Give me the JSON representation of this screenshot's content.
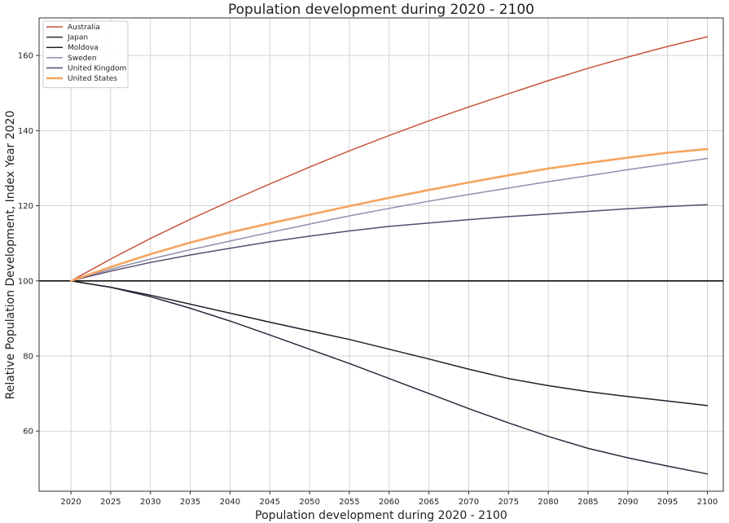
{
  "chart_data": {
    "type": "line",
    "title": "Population development during 2020 - 2100",
    "xlabel": "Population development during 2020 - 2100",
    "ylabel": "Relative Population Development, Index Year 2020",
    "x": [
      2020,
      2025,
      2030,
      2035,
      2040,
      2045,
      2050,
      2055,
      2060,
      2065,
      2070,
      2075,
      2080,
      2085,
      2090,
      2095,
      2100
    ],
    "xlim": [
      2016,
      2102
    ],
    "ylim": [
      44,
      170
    ],
    "xticks": [
      "2020",
      "2025",
      "2030",
      "2035",
      "2040",
      "2045",
      "2050",
      "2055",
      "2060",
      "2065",
      "2070",
      "2075",
      "2080",
      "2085",
      "2090",
      "2095",
      "2100"
    ],
    "yticks": [
      "60",
      "80",
      "100",
      "120",
      "140",
      "160"
    ],
    "grid": true,
    "legend_position": "top-left",
    "reference_line": 100,
    "series": [
      {
        "name": "Australia",
        "color": "#c8553d",
        "width": 1.5,
        "values": [
          100,
          105.8,
          111.3,
          116.4,
          121.2,
          125.8,
          130.3,
          134.6,
          138.7,
          142.6,
          146.3,
          149.8,
          153.3,
          156.6,
          159.6,
          162.4,
          165.0
        ]
      },
      {
        "name": "Japan",
        "color": "#2b2b3d",
        "width": 1.5,
        "values": [
          100,
          98.3,
          95.8,
          92.7,
          89.3,
          85.6,
          81.8,
          78.0,
          74.0,
          70.0,
          66.0,
          62.2,
          58.6,
          55.4,
          52.9,
          50.7,
          48.6
        ]
      },
      {
        "name": "Moldova",
        "color": "#1f1f2e",
        "width": 1.5,
        "values": [
          100,
          98.3,
          96.2,
          93.8,
          91.4,
          89.0,
          86.7,
          84.4,
          81.8,
          79.2,
          76.5,
          74.0,
          72.1,
          70.5,
          69.2,
          68.0,
          66.8
        ]
      },
      {
        "name": "Sweden",
        "color": "#8f8fae",
        "width": 1.5,
        "values": [
          100,
          103.1,
          105.8,
          108.3,
          110.6,
          112.9,
          115.1,
          117.3,
          119.3,
          121.2,
          123.0,
          124.7,
          126.4,
          128.0,
          129.6,
          131.1,
          132.6
        ]
      },
      {
        "name": "United Kingdom",
        "color": "#5a4a6e",
        "width": 1.5,
        "values": [
          100,
          102.6,
          104.9,
          106.9,
          108.7,
          110.4,
          111.9,
          113.3,
          114.5,
          115.4,
          116.3,
          117.1,
          117.8,
          118.5,
          119.2,
          119.8,
          120.3
        ]
      },
      {
        "name": "United States",
        "color": "#f4a460",
        "width": 2.6,
        "values": [
          100,
          103.7,
          107.1,
          110.2,
          112.9,
          115.3,
          117.6,
          119.9,
          122.1,
          124.2,
          126.2,
          128.1,
          129.9,
          131.4,
          132.8,
          134.1,
          135.1
        ]
      }
    ]
  }
}
